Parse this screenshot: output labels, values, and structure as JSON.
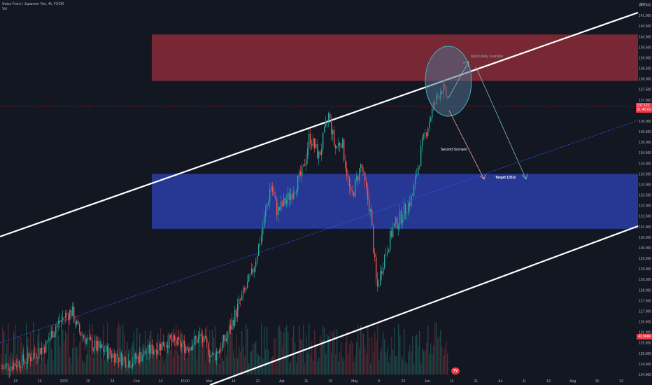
{
  "header": {
    "symbol_line": "Swiss Franc / Japanese Yen, 4h, FXCM",
    "indicator": "Vol"
  },
  "brand": "TV",
  "chart_data": {
    "type": "candlestick",
    "currency_label": "JPY",
    "ylim": [
      124.0,
      141.5
    ],
    "y_ticks": [
      "141.500",
      "141.000",
      "140.500",
      "140.000",
      "139.500",
      "139.000",
      "138.500",
      "138.000",
      "137.500",
      "137.000",
      "136.500",
      "136.000",
      "135.500",
      "135.000",
      "134.500",
      "134.000",
      "133.500",
      "133.000",
      "132.500",
      "132.000",
      "131.500",
      "131.000",
      "130.500",
      "130.000",
      "129.500",
      "129.000",
      "128.500",
      "128.000",
      "127.500",
      "127.000",
      "126.500",
      "126.000",
      "125.500",
      "125.000",
      "124.500",
      "124.000"
    ],
    "x_ticks": [
      "13",
      "19",
      "2023",
      "10",
      "24",
      "Feb",
      "14",
      "15:00",
      "Mar",
      "14",
      "22",
      "Apr",
      "11",
      "19",
      "May",
      "9",
      "23",
      "Jun",
      "13",
      "21",
      "Jul",
      "11",
      "19",
      "Aug",
      "15",
      "23"
    ],
    "current_price": {
      "value": 137.122,
      "label": "137.122",
      "sublabel": "21:46:18"
    },
    "volume_tag": {
      "label": "42.968k"
    },
    "price_path": [
      {
        "t": 0.0,
        "p": 124.3
      },
      {
        "t": 0.04,
        "p": 124.7
      },
      {
        "t": 0.07,
        "p": 125.4
      },
      {
        "t": 0.085,
        "p": 126.3
      },
      {
        "t": 0.1,
        "p": 126.8
      },
      {
        "t": 0.11,
        "p": 127.0
      },
      {
        "t": 0.12,
        "p": 126.1
      },
      {
        "t": 0.14,
        "p": 125.4
      },
      {
        "t": 0.17,
        "p": 125.0
      },
      {
        "t": 0.2,
        "p": 124.6
      },
      {
        "t": 0.23,
        "p": 125.1
      },
      {
        "t": 0.26,
        "p": 125.6
      },
      {
        "t": 0.29,
        "p": 125.3
      },
      {
        "t": 0.31,
        "p": 125.8
      },
      {
        "t": 0.33,
        "p": 124.8
      },
      {
        "t": 0.35,
        "p": 125.7
      },
      {
        "t": 0.37,
        "p": 127.3
      },
      {
        "t": 0.39,
        "p": 128.7
      },
      {
        "t": 0.405,
        "p": 130.6
      },
      {
        "t": 0.42,
        "p": 133.0
      },
      {
        "t": 0.43,
        "p": 131.7
      },
      {
        "t": 0.45,
        "p": 132.5
      },
      {
        "t": 0.47,
        "p": 133.6
      },
      {
        "t": 0.48,
        "p": 135.3
      },
      {
        "t": 0.495,
        "p": 134.3
      },
      {
        "t": 0.51,
        "p": 136.3
      },
      {
        "t": 0.52,
        "p": 134.7
      },
      {
        "t": 0.53,
        "p": 135.1
      },
      {
        "t": 0.545,
        "p": 132.3
      },
      {
        "t": 0.56,
        "p": 133.9
      },
      {
        "t": 0.575,
        "p": 131.7
      },
      {
        "t": 0.585,
        "p": 128.0
      },
      {
        "t": 0.595,
        "p": 129.4
      },
      {
        "t": 0.61,
        "p": 130.9
      },
      {
        "t": 0.625,
        "p": 131.6
      },
      {
        "t": 0.64,
        "p": 132.4
      },
      {
        "t": 0.655,
        "p": 134.8
      },
      {
        "t": 0.67,
        "p": 136.4
      },
      {
        "t": 0.685,
        "p": 137.6
      },
      {
        "t": 0.695,
        "p": 137.1
      }
    ],
    "zones": [
      {
        "name": "supply",
        "price_from": 137.9,
        "price_to": 140.1,
        "color": "#8b2a37"
      },
      {
        "name": "demand",
        "price_from": 130.9,
        "price_to": 133.5,
        "color": "#2a3ea8"
      }
    ],
    "annotations": [
      {
        "text": "Most Likely Scenario",
        "color": "#7bbcb6"
      },
      {
        "text": "Second Scenario",
        "color": "#ffffff"
      },
      {
        "text": "Target 133,9",
        "color": "#ffffff"
      }
    ]
  }
}
